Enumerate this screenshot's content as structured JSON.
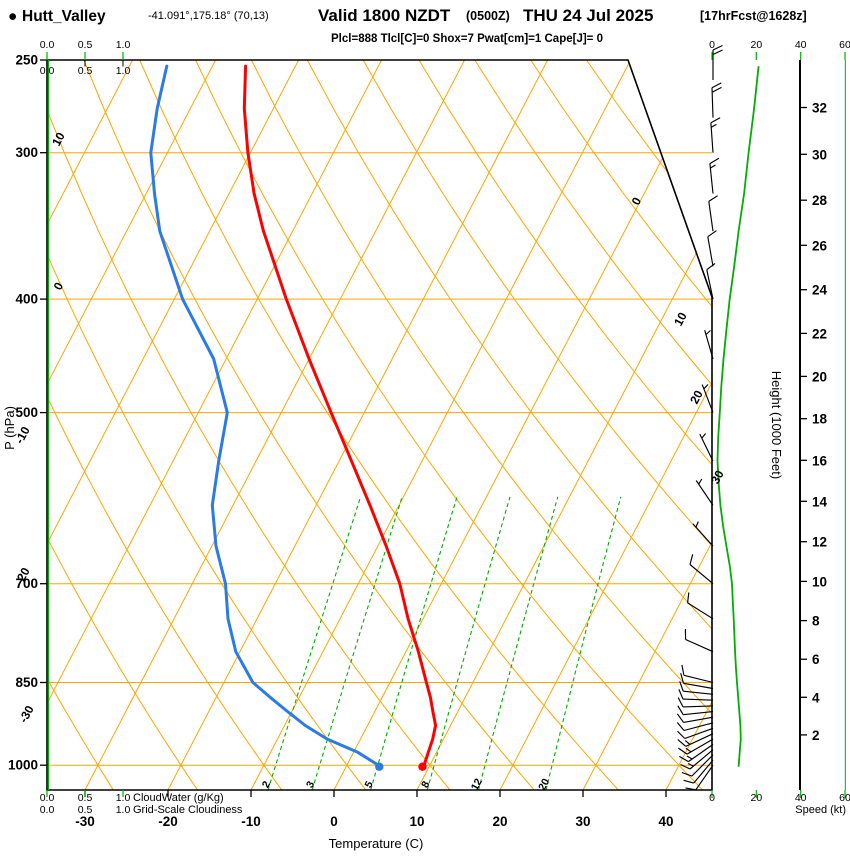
{
  "header": {
    "bullet": "●",
    "station": "Hutt_Valley",
    "coords": "-41.091°,175.18° (70,13)",
    "valid": "Valid 1800 NZDT",
    "valid_zulu": "(0500Z)",
    "valid_date": "THU 24 Jul 2025",
    "fcst": "[17hrFcst@1628z]",
    "params": "Plcl=888 Tlcl[C]=0 Shox=7 Pwat[cm]=1 Cape[J]= 0"
  },
  "axes": {
    "pressure": {
      "title": "P (hPa)",
      "ticks": [
        250,
        300,
        400,
        500,
        700,
        850,
        1000
      ]
    },
    "temperature": {
      "title": "Temperature (C)",
      "ticks": [
        -30,
        -20,
        -10,
        0,
        10,
        20,
        30,
        40
      ]
    },
    "height": {
      "title": "Height (1000 Feet)",
      "ticks": [
        2,
        4,
        6,
        8,
        10,
        12,
        14,
        16,
        18,
        20,
        22,
        24,
        26,
        28,
        30,
        32
      ]
    },
    "speed": {
      "title": "Speed (kt)",
      "ticks": [
        0,
        20,
        40,
        60
      ]
    },
    "cloud": {
      "water_label": "CloudWater (g/Kg)",
      "cloudiness_label": "Grid-Scale Cloudiness",
      "ticks": [
        "0.0",
        "0.5",
        "1.0"
      ]
    }
  },
  "grid_labels": {
    "isotherms_left": [
      "-10",
      "-20",
      "-30"
    ],
    "isotherms_right": [
      "0",
      "10",
      "20",
      "30"
    ],
    "dry_adiabats_left": [
      "10",
      "0"
    ],
    "mixing_ratio": [
      "2",
      "3",
      "5",
      "8",
      "12",
      "20"
    ]
  },
  "colors": {
    "grid_orange": "#FFA500",
    "green": "#00AF00",
    "temperature_red": "#FF0000",
    "dewpoint_blue": "#2B7BE4",
    "params_magenta": "#C4007A",
    "black": "#000000"
  },
  "chart_data": {
    "type": "skewt_sounding",
    "pressure_range_hpa": [
      250,
      1050
    ],
    "pressure_hpa": [
      1003,
      1000,
      975,
      950,
      925,
      900,
      875,
      850,
      800,
      750,
      700,
      650,
      600,
      550,
      500,
      450,
      400,
      350,
      325,
      300,
      275,
      253
    ],
    "temperature_c": [
      9.2,
      9.3,
      9.0,
      8.7,
      8.2,
      7.0,
      5.8,
      4.4,
      1.5,
      -1.8,
      -5.0,
      -9.0,
      -13.5,
      -18.5,
      -24.0,
      -30.0,
      -36.5,
      -43.5,
      -47.0,
      -50.3,
      -53.5,
      -56.0
    ],
    "dewpoint_c": [
      4.0,
      3.8,
      0.5,
      -4.0,
      -7.5,
      -10.5,
      -13.5,
      -16.5,
      -20.5,
      -23.5,
      -26.0,
      -29.5,
      -32.5,
      -34.5,
      -36.5,
      -41.5,
      -49.0,
      -56.0,
      -59.0,
      -62.0,
      -64.0,
      -65.5
    ],
    "surface": {
      "pressure_hpa": 1003,
      "temperature_c": 9.2,
      "dewpoint_c": 4.0
    },
    "wind_barbs": [
      [
        1000,
        215,
        12
      ],
      [
        990,
        220,
        12
      ],
      [
        980,
        225,
        12
      ],
      [
        970,
        230,
        13
      ],
      [
        960,
        235,
        13
      ],
      [
        950,
        240,
        13
      ],
      [
        940,
        245,
        13
      ],
      [
        930,
        250,
        12
      ],
      [
        920,
        255,
        12
      ],
      [
        910,
        260,
        12
      ],
      [
        900,
        264,
        11
      ],
      [
        890,
        268,
        11
      ],
      [
        880,
        272,
        10
      ],
      [
        870,
        276,
        10
      ],
      [
        860,
        280,
        10
      ],
      [
        850,
        284,
        10
      ],
      [
        800,
        294,
        9
      ],
      [
        750,
        302,
        9
      ],
      [
        700,
        310,
        8
      ],
      [
        650,
        318,
        6
      ],
      [
        600,
        326,
        4
      ],
      [
        550,
        334,
        3
      ],
      [
        500,
        339,
        4
      ],
      [
        450,
        344,
        6
      ],
      [
        400,
        348,
        8
      ],
      [
        375,
        350,
        10
      ],
      [
        350,
        352,
        12
      ],
      [
        325,
        354,
        15
      ],
      [
        300,
        356,
        17
      ],
      [
        280,
        358,
        19
      ],
      [
        260,
        360,
        21
      ]
    ],
    "speed_profile": {
      "pressure_hpa": [
        1003,
        975,
        950,
        925,
        900,
        875,
        850,
        825,
        800,
        775,
        750,
        725,
        700,
        675,
        650,
        625,
        600,
        575,
        550,
        525,
        500,
        475,
        450,
        425,
        400,
        375,
        350,
        325,
        300,
        275,
        253
      ],
      "kt": [
        12,
        12.5,
        13,
        12.8,
        12.3,
        11.8,
        11.3,
        10.8,
        10.4,
        10.1,
        9.8,
        9.4,
        9,
        8,
        6.5,
        5,
        3.8,
        3,
        2.5,
        2.8,
        3.5,
        4.2,
        5.2,
        6.5,
        8,
        10,
        12,
        14.5,
        16.5,
        19,
        21
      ]
    },
    "cloud_water_gkg": {
      "pressure_hpa": [
        1003,
        253
      ],
      "value": [
        0,
        0
      ]
    },
    "mixing_ratio_lines_gkg": [
      2,
      3,
      5,
      8,
      12,
      20
    ],
    "indices": {
      "plcl": 888,
      "tlcl_c": 0,
      "showalter": 7,
      "pwat_cm": 1,
      "cape_j": 0
    }
  }
}
